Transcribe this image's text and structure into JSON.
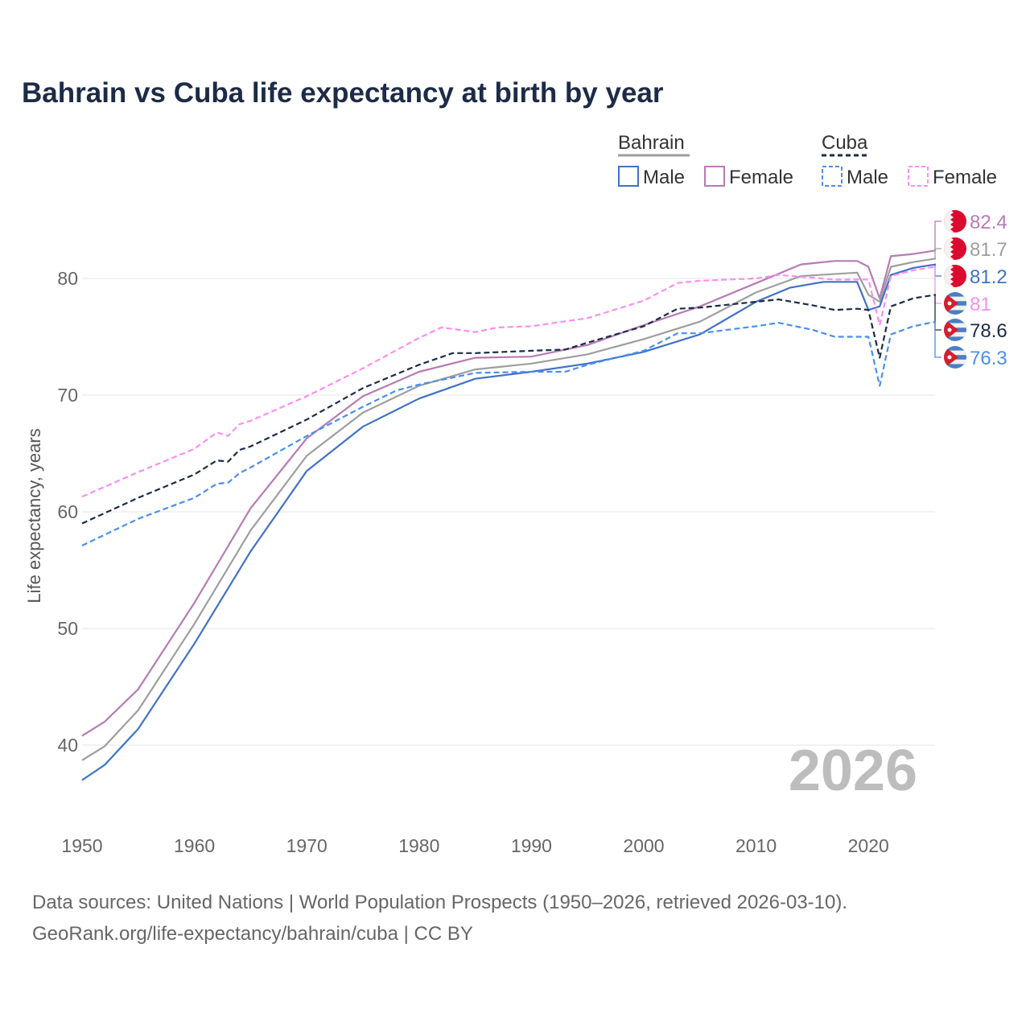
{
  "chart_data": {
    "type": "line",
    "title": "Bahrain vs Cuba life expectancy at birth by year",
    "xlabel": "",
    "ylabel": "Life expectancy, years",
    "xlim": [
      1950,
      2026
    ],
    "ylim": [
      35,
      85
    ],
    "x_ticks": [
      1950,
      1960,
      1970,
      1980,
      1990,
      2000,
      2010,
      2020
    ],
    "y_ticks": [
      40,
      50,
      60,
      70,
      80
    ],
    "grid": true,
    "watermark_year": "2026",
    "legend": {
      "placement": "top-right",
      "groups": [
        {
          "name": "Bahrain",
          "entries": [
            "Male",
            "Female"
          ]
        },
        {
          "name": "Cuba",
          "entries": [
            "Male",
            "Female"
          ]
        }
      ]
    },
    "series": [
      {
        "name": "Bahrain Female",
        "country": "Bahrain",
        "color": "#b77bb4",
        "dash": false,
        "end_label": "82.4",
        "points": [
          [
            1950,
            40.8
          ],
          [
            1952,
            42
          ],
          [
            1955,
            44.8
          ],
          [
            1960,
            52.2
          ],
          [
            1965,
            60.3
          ],
          [
            1970,
            66.3
          ],
          [
            1975,
            69.9
          ],
          [
            1980,
            72.0
          ],
          [
            1985,
            73.2
          ],
          [
            1990,
            73.3
          ],
          [
            1995,
            74.3
          ],
          [
            2000,
            76.0
          ],
          [
            2005,
            77.6
          ],
          [
            2010,
            79.6
          ],
          [
            2014,
            81.2
          ],
          [
            2017,
            81.5
          ],
          [
            2019,
            81.5
          ],
          [
            2020,
            81.0
          ],
          [
            2021,
            78.3
          ],
          [
            2022,
            81.9
          ],
          [
            2024,
            82.1
          ],
          [
            2026,
            82.4
          ]
        ]
      },
      {
        "name": "Bahrain",
        "country": "Bahrain",
        "color": "#9e9e9e",
        "dash": false,
        "end_label": "81.7",
        "points": [
          [
            1950,
            38.7
          ],
          [
            1952,
            39.9
          ],
          [
            1955,
            43.0
          ],
          [
            1960,
            50.4
          ],
          [
            1965,
            58.4
          ],
          [
            1970,
            64.8
          ],
          [
            1975,
            68.5
          ],
          [
            1980,
            70.8
          ],
          [
            1985,
            72.2
          ],
          [
            1990,
            72.7
          ],
          [
            1995,
            73.5
          ],
          [
            2000,
            74.8
          ],
          [
            2005,
            76.3
          ],
          [
            2010,
            78.8
          ],
          [
            2014,
            80.2
          ],
          [
            2019,
            80.5
          ],
          [
            2020,
            78.6
          ],
          [
            2021,
            78.0
          ],
          [
            2022,
            81.0
          ],
          [
            2024,
            81.4
          ],
          [
            2026,
            81.7
          ]
        ]
      },
      {
        "name": "Bahrain Male",
        "country": "Bahrain",
        "color": "#3f72c6",
        "dash": false,
        "end_label": "81.2",
        "points": [
          [
            1950,
            37.0
          ],
          [
            1952,
            38.3
          ],
          [
            1955,
            41.4
          ],
          [
            1960,
            48.7
          ],
          [
            1965,
            56.6
          ],
          [
            1970,
            63.5
          ],
          [
            1975,
            67.3
          ],
          [
            1980,
            69.7
          ],
          [
            1985,
            71.4
          ],
          [
            1990,
            72.0
          ],
          [
            1995,
            72.7
          ],
          [
            2000,
            73.7
          ],
          [
            2005,
            75.2
          ],
          [
            2010,
            78.0
          ],
          [
            2013,
            79.2
          ],
          [
            2016,
            79.7
          ],
          [
            2019,
            79.7
          ],
          [
            2020,
            77.3
          ],
          [
            2021,
            77.6
          ],
          [
            2022,
            80.3
          ],
          [
            2024,
            80.9
          ],
          [
            2026,
            81.2
          ]
        ]
      },
      {
        "name": "Cuba Female",
        "country": "Cuba",
        "color": "#f98ff0",
        "dash": true,
        "end_label": "81",
        "points": [
          [
            1950,
            61.3
          ],
          [
            1955,
            63.4
          ],
          [
            1960,
            65.4
          ],
          [
            1962,
            66.8
          ],
          [
            1963,
            66.5
          ],
          [
            1964,
            67.5
          ],
          [
            1965,
            67.8
          ],
          [
            1970,
            69.9
          ],
          [
            1975,
            72.3
          ],
          [
            1980,
            74.9
          ],
          [
            1982,
            75.8
          ],
          [
            1985,
            75.4
          ],
          [
            1987,
            75.8
          ],
          [
            1990,
            75.9
          ],
          [
            1995,
            76.6
          ],
          [
            2000,
            78.1
          ],
          [
            2003,
            79.6
          ],
          [
            2005,
            79.8
          ],
          [
            2010,
            80.0
          ],
          [
            2012,
            80.3
          ],
          [
            2017,
            79.9
          ],
          [
            2020,
            79.9
          ],
          [
            2021,
            76.0
          ],
          [
            2022,
            80.2
          ],
          [
            2024,
            80.7
          ],
          [
            2026,
            81.0
          ]
        ]
      },
      {
        "name": "Cuba",
        "country": "Cuba",
        "color": "#1d2b46",
        "dash": true,
        "end_label": "78.6",
        "points": [
          [
            1950,
            59.0
          ],
          [
            1955,
            61.2
          ],
          [
            1960,
            63.2
          ],
          [
            1962,
            64.4
          ],
          [
            1963,
            64.3
          ],
          [
            1964,
            65.3
          ],
          [
            1965,
            65.6
          ],
          [
            1970,
            67.9
          ],
          [
            1975,
            70.6
          ],
          [
            1980,
            72.6
          ],
          [
            1983,
            73.6
          ],
          [
            1985,
            73.6
          ],
          [
            1990,
            73.8
          ],
          [
            1993,
            73.9
          ],
          [
            1995,
            74.5
          ],
          [
            2000,
            75.9
          ],
          [
            2003,
            77.4
          ],
          [
            2005,
            77.5
          ],
          [
            2010,
            78.0
          ],
          [
            2012,
            78.2
          ],
          [
            2015,
            77.7
          ],
          [
            2017,
            77.3
          ],
          [
            2019,
            77.4
          ],
          [
            2020,
            77.3
          ],
          [
            2021,
            73.2
          ],
          [
            2022,
            77.6
          ],
          [
            2024,
            78.3
          ],
          [
            2026,
            78.6
          ]
        ]
      },
      {
        "name": "Cuba Male",
        "country": "Cuba",
        "color": "#4a8eef",
        "dash": true,
        "end_label": "76.3",
        "points": [
          [
            1950,
            57.1
          ],
          [
            1955,
            59.4
          ],
          [
            1960,
            61.2
          ],
          [
            1962,
            62.4
          ],
          [
            1963,
            62.5
          ],
          [
            1964,
            63.3
          ],
          [
            1965,
            63.8
          ],
          [
            1970,
            66.5
          ],
          [
            1975,
            69.0
          ],
          [
            1978,
            70.4
          ],
          [
            1980,
            70.9
          ],
          [
            1985,
            71.9
          ],
          [
            1990,
            72.0
          ],
          [
            1993,
            72.0
          ],
          [
            1995,
            72.6
          ],
          [
            2000,
            73.8
          ],
          [
            2003,
            75.3
          ],
          [
            2005,
            75.3
          ],
          [
            2010,
            75.9
          ],
          [
            2012,
            76.2
          ],
          [
            2015,
            75.6
          ],
          [
            2017,
            75.0
          ],
          [
            2020,
            75.0
          ],
          [
            2021,
            70.8
          ],
          [
            2022,
            75.2
          ],
          [
            2024,
            75.9
          ],
          [
            2026,
            76.3
          ]
        ]
      }
    ]
  },
  "footer": {
    "source": "Data sources: United Nations | World Population Prospects (1950–2026, retrieved 2026-03-10).",
    "credit": "GeoRank.org/life-expectancy/bahrain/cuba | CC BY"
  }
}
